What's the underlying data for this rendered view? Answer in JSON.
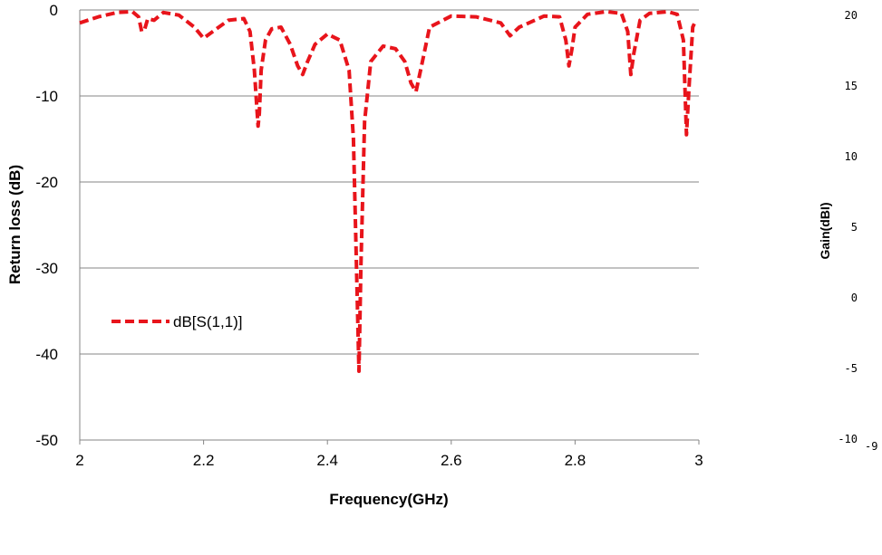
{
  "chart_data": [
    {
      "type": "line",
      "xlabel": "Frequency(GHz)",
      "ylabel": "Return loss (dB)",
      "xlim": [
        2,
        3
      ],
      "ylim": [
        -50,
        0
      ],
      "x_ticks": [
        "2",
        "2.2",
        "2.4",
        "2.6",
        "2.8",
        "3"
      ],
      "y_ticks": [
        "0",
        "-10",
        "-20",
        "-30",
        "-40",
        "-50"
      ],
      "grid": "horizontal",
      "legend": "left-middle",
      "series": [
        {
          "name": "dB[S(1,1)]",
          "color": "#e8141b",
          "style": "dashed",
          "x": [
            2.0,
            2.03,
            2.06,
            2.085,
            2.095,
            2.1,
            2.105,
            2.11,
            2.12,
            2.135,
            2.16,
            2.185,
            2.2,
            2.215,
            2.24,
            2.265,
            2.275,
            2.282,
            2.288,
            2.29,
            2.293,
            2.3,
            2.31,
            2.325,
            2.34,
            2.352,
            2.36,
            2.368,
            2.38,
            2.4,
            2.42,
            2.435,
            2.442,
            2.447,
            2.451,
            2.454,
            2.46,
            2.47,
            2.49,
            2.51,
            2.525,
            2.535,
            2.543,
            2.552,
            2.565,
            2.6,
            2.64,
            2.68,
            2.695,
            2.71,
            2.75,
            2.775,
            2.785,
            2.79,
            2.795,
            2.8,
            2.82,
            2.85,
            2.875,
            2.885,
            2.89,
            2.895,
            2.905,
            2.92,
            2.95,
            2.965,
            2.975,
            2.98,
            2.984,
            2.99,
            2.995
          ],
          "values": [
            -1.5,
            -0.8,
            -0.3,
            -0.2,
            -0.8,
            -2.5,
            -2.2,
            -1.0,
            -1.2,
            -0.3,
            -0.6,
            -2.0,
            -3.3,
            -2.5,
            -1.2,
            -1.0,
            -2.5,
            -7.0,
            -13.5,
            -12.0,
            -7.0,
            -3.5,
            -2.2,
            -2.0,
            -4.0,
            -6.5,
            -7.5,
            -6.0,
            -4.0,
            -2.8,
            -3.5,
            -7.0,
            -15.0,
            -30.0,
            -42.0,
            -30.0,
            -13.0,
            -6.0,
            -4.2,
            -4.5,
            -6.0,
            -8.5,
            -9.5,
            -6.5,
            -2.0,
            -0.7,
            -0.8,
            -1.5,
            -3.0,
            -2.0,
            -0.7,
            -0.8,
            -3.5,
            -6.5,
            -4.5,
            -2.0,
            -0.5,
            -0.2,
            -0.4,
            -2.5,
            -7.5,
            -5.0,
            -1.2,
            -0.4,
            -0.2,
            -0.5,
            -3.5,
            -14.5,
            -9.0,
            -2.0,
            -1.2
          ]
        }
      ]
    },
    {
      "type": "line",
      "xlabel": "",
      "ylabel": "Gain(dBI)",
      "ylim": [
        -10,
        20
      ],
      "x_ticks": [
        "-9"
      ],
      "y_ticks": [
        "20",
        "15",
        "10",
        "5",
        "0",
        "-5",
        "-10"
      ],
      "series": []
    }
  ]
}
